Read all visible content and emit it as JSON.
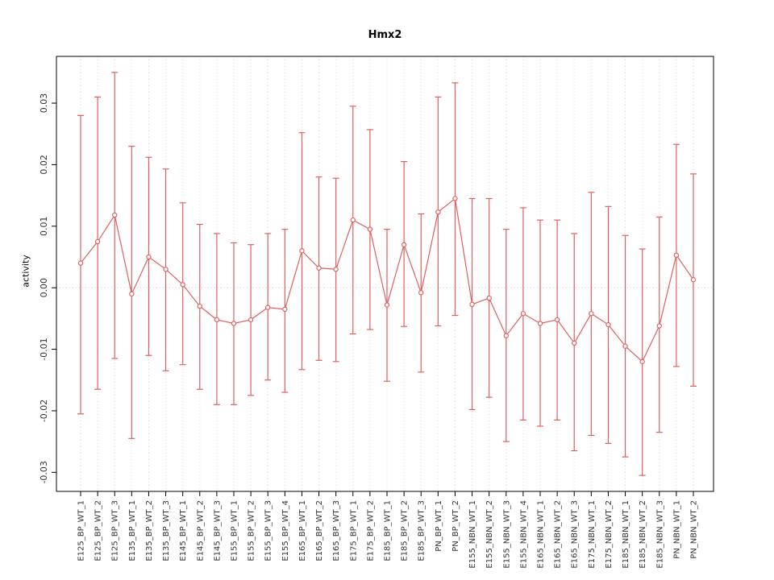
{
  "chart_data": {
    "type": "line",
    "title": "Hmx2",
    "xlabel": "",
    "ylabel": "activity",
    "grid": "vertical-dotted",
    "legend": "none",
    "ylim": [
      -0.0331,
      0.0376
    ],
    "yticks": [
      -0.03,
      -0.02,
      -0.01,
      0,
      0.01,
      0.02,
      0.03
    ],
    "ytick_labels": [
      "-0.03",
      "-0.02",
      "-0.01",
      "0.00",
      "0.01",
      "0.02",
      "0.03"
    ],
    "zero_line": 0,
    "categories": [
      "E125_BP_WT_1",
      "E125_BP_WT_2",
      "E125_BP_WT_3",
      "E135_BP_WT_1",
      "E135_BP_WT_2",
      "E135_BP_WT_3",
      "E145_BP_WT_1",
      "E145_BP_WT_2",
      "E145_BP_WT_3",
      "E155_BP_WT_1",
      "E155_BP_WT_2",
      "E155_BP_WT_3",
      "E155_BP_WT_4",
      "E165_BP_WT_1",
      "E165_BP_WT_2",
      "E165_BP_WT_3",
      "E175_BP_WT_1",
      "E175_BP_WT_2",
      "E185_BP_WT_1",
      "E185_BP_WT_2",
      "E185_BP_WT_3",
      "PN_BP_WT_1",
      "PN_BP_WT_2",
      "E155_NBN_WT_1",
      "E155_NBN_WT_2",
      "E155_NBN_WT_3",
      "E155_NBN_WT_4",
      "E165_NBN_WT_1",
      "E165_NBN_WT_2",
      "E165_NBN_WT_3",
      "E175_NBN_WT_1",
      "E175_NBN_WT_2",
      "E185_NBN_WT_1",
      "E185_NBN_WT_2",
      "E185_NBN_WT_3",
      "PN_NBN_WT_1",
      "PN_NBN_WT_2"
    ],
    "values": [
      0.004,
      0.0075,
      0.0118,
      -0.001,
      0.005,
      0.003,
      0.0005,
      -0.003,
      -0.0052,
      -0.0058,
      -0.0052,
      -0.0032,
      -0.0035,
      0.006,
      0.0032,
      0.003,
      0.011,
      0.0095,
      -0.0028,
      0.007,
      -0.0008,
      0.0123,
      0.0145,
      -0.0027,
      -0.0017,
      -0.0078,
      -0.0042,
      -0.0058,
      -0.0052,
      -0.009,
      -0.0042,
      -0.006,
      -0.0095,
      -0.012,
      -0.0062,
      0.0053,
      0.0013
    ],
    "error_high": [
      0.028,
      0.031,
      0.035,
      0.023,
      0.0212,
      0.0193,
      0.0138,
      0.0103,
      0.0088,
      0.0073,
      0.007,
      0.0088,
      0.0095,
      0.0252,
      0.018,
      0.0178,
      0.0295,
      0.0257,
      0.0095,
      0.0205,
      0.012,
      0.031,
      0.0333,
      0.0145,
      0.0145,
      0.0095,
      0.013,
      0.011,
      0.011,
      0.0088,
      0.0155,
      0.0132,
      0.0085,
      0.0063,
      0.0115,
      0.0233,
      0.0185
    ],
    "error_low": [
      -0.0205,
      -0.0165,
      -0.0115,
      -0.0245,
      -0.011,
      -0.0135,
      -0.0125,
      -0.0165,
      -0.019,
      -0.019,
      -0.0175,
      -0.015,
      -0.017,
      -0.0133,
      -0.0118,
      -0.012,
      -0.0075,
      -0.0068,
      -0.0152,
      -0.0063,
      -0.0137,
      -0.0062,
      -0.0045,
      -0.0198,
      -0.0178,
      -0.025,
      -0.0215,
      -0.0225,
      -0.0215,
      -0.0265,
      -0.024,
      -0.0253,
      -0.0275,
      -0.0305,
      -0.0235,
      -0.0128,
      -0.016
    ],
    "colors": {
      "series": "#e06060",
      "grid": "#dcdcdc",
      "zero_line": "#f5bcbc",
      "axis": "#000000",
      "tick_text": "#333333"
    }
  }
}
